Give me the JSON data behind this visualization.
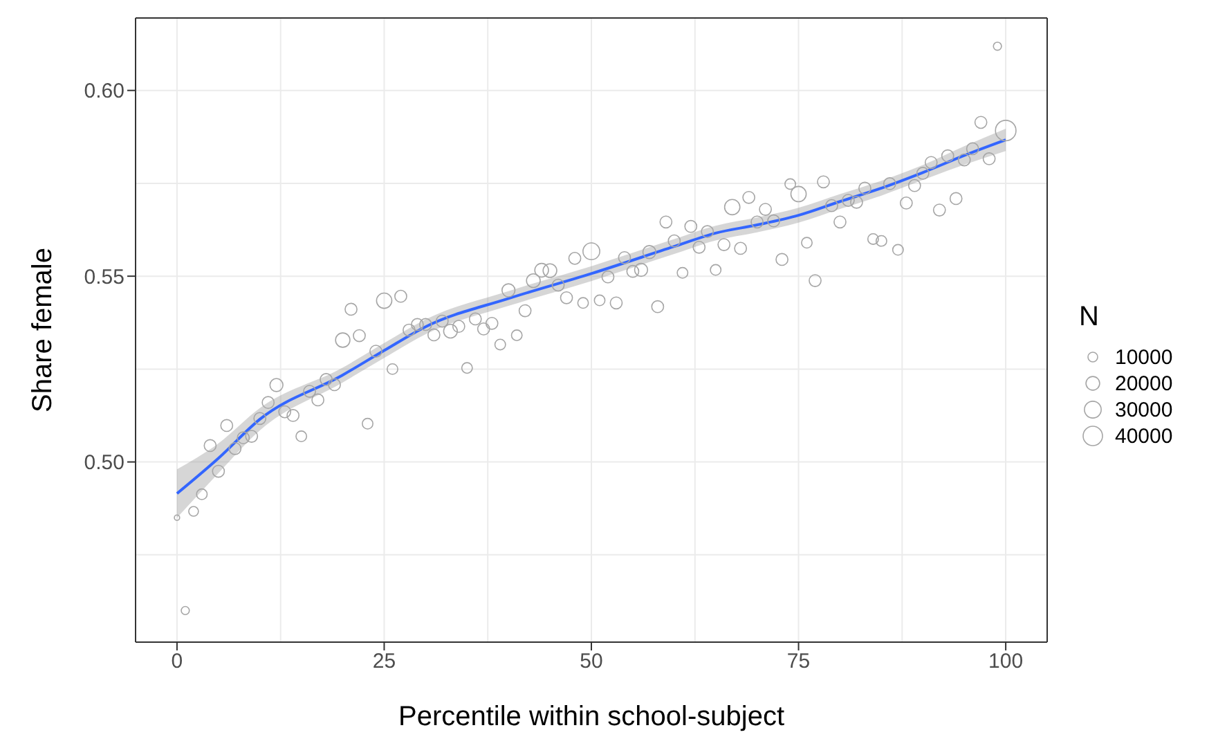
{
  "chart_data": {
    "type": "bubble",
    "xlabel": "Percentile within school-subject",
    "ylabel": "Share female",
    "legend_title": "N",
    "xlim": [
      -5,
      105
    ],
    "xticks": [
      0,
      25,
      50,
      75,
      100
    ],
    "ylim": [
      0.4515,
      0.6195
    ],
    "yticks": [
      {
        "value": 0.5,
        "label": "0.50"
      },
      {
        "value": 0.55,
        "label": "0.55"
      },
      {
        "value": 0.6,
        "label": "0.60"
      }
    ],
    "grid": true,
    "size_legend": [
      10000,
      20000,
      30000,
      40000
    ],
    "series": [
      {
        "color": "#a6a6a6",
        "x": [
          0,
          1,
          2,
          3,
          4,
          5,
          6,
          7,
          8,
          9,
          10,
          11,
          12,
          13,
          14,
          15,
          16,
          17,
          18,
          19,
          20,
          21,
          22,
          23,
          24,
          25,
          26,
          27,
          28,
          29,
          30,
          31,
          32,
          33,
          34,
          35,
          36,
          37,
          38,
          39,
          40,
          41,
          42,
          43,
          44,
          45,
          46,
          47,
          48,
          49,
          50,
          51,
          52,
          53,
          54,
          55,
          56,
          57,
          58,
          59,
          60,
          61,
          62,
          63,
          64,
          65,
          66,
          67,
          68,
          69,
          70,
          71,
          72,
          73,
          74,
          75,
          76,
          77,
          78,
          79,
          80,
          81,
          82,
          83,
          84,
          85,
          86,
          87,
          88,
          89,
          90,
          91,
          92,
          93,
          94,
          95,
          96,
          97,
          98,
          99,
          100
        ],
        "values": [
          0.485,
          0.46,
          0.4867,
          0.4913,
          0.5044,
          0.4975,
          0.5098,
          0.5036,
          0.5065,
          0.5069,
          0.5117,
          0.516,
          0.5207,
          0.5135,
          0.5125,
          0.5069,
          0.519,
          0.5167,
          0.5222,
          0.5208,
          0.5328,
          0.5411,
          0.534,
          0.5103,
          0.5298,
          0.5434,
          0.525,
          0.5446,
          0.5355,
          0.537,
          0.537,
          0.5342,
          0.5379,
          0.5352,
          0.5365,
          0.5253,
          0.5385,
          0.5358,
          0.5373,
          0.5316,
          0.5462,
          0.5341,
          0.5407,
          0.5488,
          0.5516,
          0.5515,
          0.5476,
          0.5442,
          0.5548,
          0.5428,
          0.5567,
          0.5435,
          0.5498,
          0.5428,
          0.555,
          0.5513,
          0.5517,
          0.5565,
          0.5418,
          0.5646,
          0.5595,
          0.5509,
          0.5634,
          0.5578,
          0.562,
          0.5517,
          0.5585,
          0.5686,
          0.5575,
          0.5712,
          0.5646,
          0.568,
          0.5649,
          0.5545,
          0.5748,
          0.5721,
          0.559,
          0.5488,
          0.5754,
          0.569,
          0.5646,
          0.5704,
          0.5699,
          0.5737,
          0.56,
          0.5595,
          0.5749,
          0.5571,
          0.5697,
          0.5744,
          0.5777,
          0.5806,
          0.5678,
          0.5824,
          0.5709,
          0.5813,
          0.5843,
          0.5914,
          0.5816,
          0.6119,
          0.5892
        ],
        "sizes": [
          3000,
          7000,
          10000,
          12000,
          15000,
          15000,
          15000,
          15000,
          15000,
          15000,
          15000,
          15000,
          18000,
          15000,
          15000,
          12000,
          15000,
          15000,
          15000,
          15000,
          22000,
          15000,
          15000,
          12000,
          15000,
          25000,
          12000,
          15000,
          15000,
          15000,
          15000,
          15000,
          15000,
          20000,
          15000,
          12000,
          15000,
          15000,
          15000,
          12000,
          18000,
          12000,
          15000,
          20000,
          20000,
          20000,
          15000,
          15000,
          15000,
          12000,
          30000,
          12000,
          15000,
          15000,
          15000,
          15000,
          18000,
          18000,
          15000,
          15000,
          15000,
          12000,
          15000,
          15000,
          15000,
          12000,
          15000,
          25000,
          15000,
          15000,
          15000,
          15000,
          15000,
          15000,
          12000,
          25000,
          12000,
          15000,
          15000,
          15000,
          15000,
          15000,
          15000,
          15000,
          12000,
          12000,
          15000,
          12000,
          15000,
          15000,
          15000,
          15000,
          15000,
          15000,
          15000,
          15000,
          15000,
          15000,
          15000,
          7000,
          45000
        ]
      },
      {
        "type": "line",
        "color": "#3366ff",
        "x": [
          0,
          5,
          10,
          20,
          25,
          30,
          40,
          50,
          60,
          65,
          70,
          75,
          80,
          85,
          90,
          95,
          100
        ],
        "values": [
          0.4915,
          0.501,
          0.5115,
          0.5234,
          0.53,
          0.5364,
          0.544,
          0.5507,
          0.558,
          0.5616,
          0.5638,
          0.5664,
          0.5701,
          0.5737,
          0.5779,
          0.5825,
          0.5867
        ],
        "lower": [
          0.485,
          0.497,
          0.5085,
          0.5214,
          0.528,
          0.5344,
          0.542,
          0.5487,
          0.556,
          0.5596,
          0.5618,
          0.5644,
          0.5681,
          0.5717,
          0.5759,
          0.58,
          0.5837
        ],
        "upper": [
          0.498,
          0.505,
          0.5145,
          0.5254,
          0.532,
          0.5384,
          0.546,
          0.5527,
          0.56,
          0.5636,
          0.5658,
          0.5684,
          0.5721,
          0.5757,
          0.5799,
          0.585,
          0.5897
        ]
      }
    ]
  }
}
